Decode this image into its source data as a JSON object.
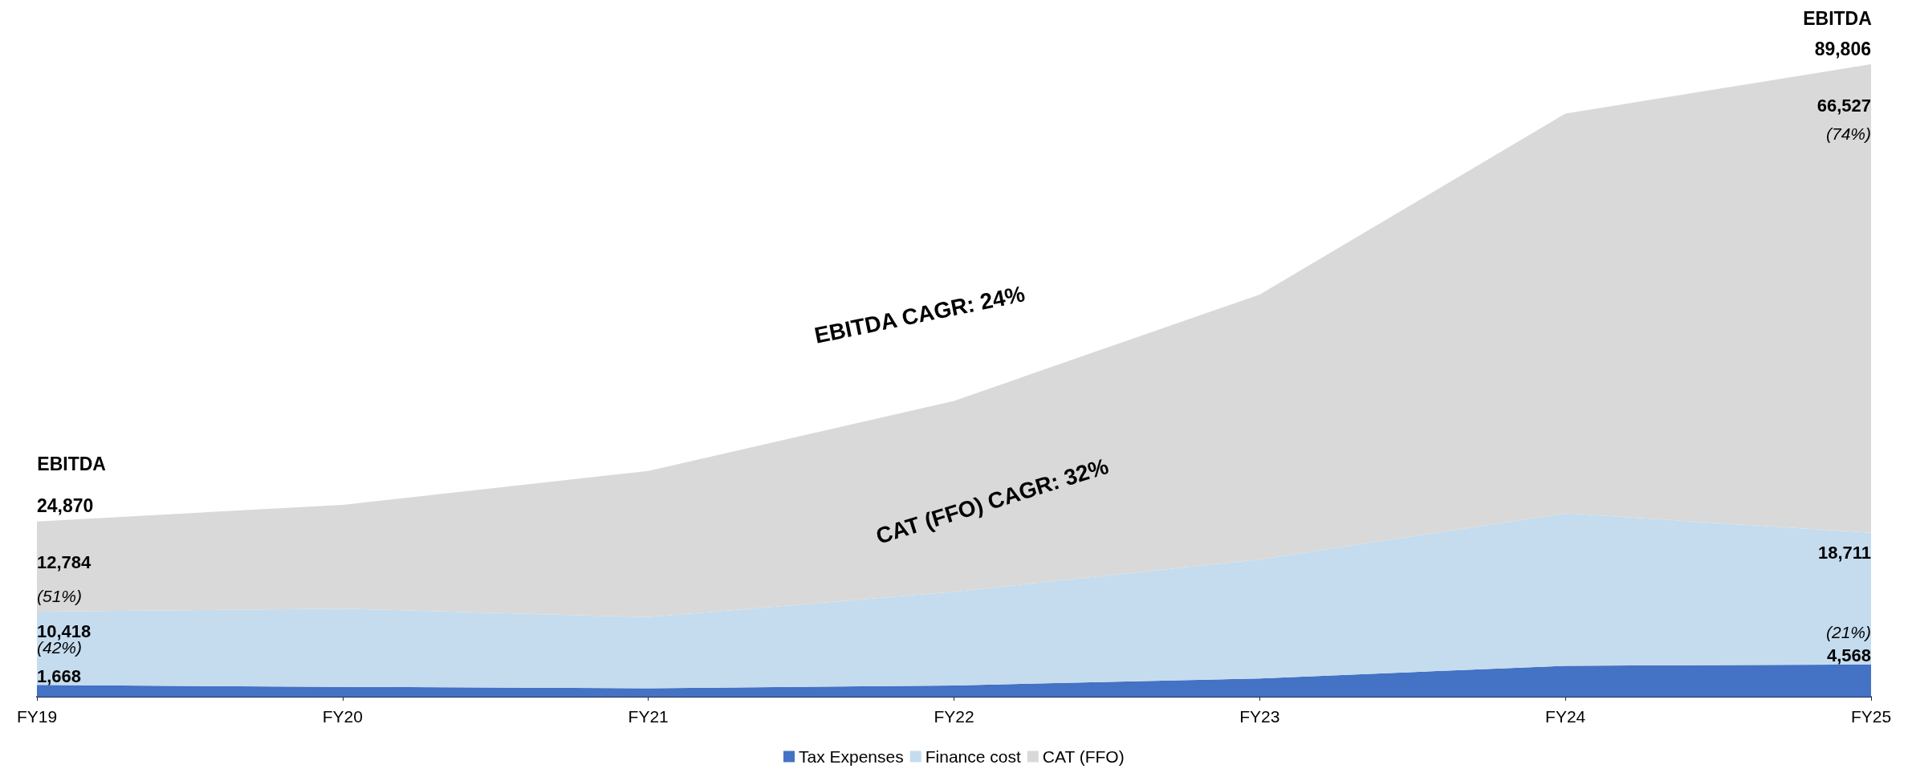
{
  "chart_data": {
    "type": "area",
    "stacked": true,
    "categories": [
      "FY19",
      "FY20",
      "FY21",
      "FY22",
      "FY23",
      "FY24",
      "FY25"
    ],
    "series": [
      {
        "name": "Tax Expenses",
        "color": "#4472c4",
        "values": [
          1668,
          1400,
          1200,
          1600,
          2600,
          4400,
          4568
        ],
        "value_labels": [
          "1,668",
          null,
          null,
          null,
          null,
          null,
          "4,568"
        ]
      },
      {
        "name": "Finance cost",
        "color": "#c5dcee",
        "values": [
          10418,
          11100,
          10100,
          13300,
          16900,
          21650,
          18711
        ],
        "value_labels": [
          "10,418",
          null,
          null,
          null,
          null,
          null,
          "18,711"
        ]
      },
      {
        "name": "CAT (FFO)",
        "color": "#d9d9d9",
        "values": [
          12784,
          14750,
          20750,
          27100,
          37600,
          56750,
          66527
        ],
        "value_labels": [
          "12,784",
          null,
          null,
          null,
          null,
          null,
          "66,527"
        ]
      }
    ],
    "totals": [
      "24,870",
      null,
      null,
      null,
      null,
      null,
      "89,806"
    ],
    "annotations": [
      "EBITDA",
      "EBITDA",
      {
        "text": "(51%)",
        "x": "FY19",
        "y": 14300
      },
      {
        "text": "(42%)",
        "x": "FY19",
        "y": 7000
      },
      {
        "text": "(74%)",
        "x": "FY25",
        "y": 80000
      },
      {
        "text": "(21%)",
        "x": "FY25",
        "y": 9200
      },
      "EBITDA CAGR: 24%",
      "CAT (FFO) CAGR: 32%"
    ],
    "legend": "bottom",
    "grid": false,
    "marker": "none"
  }
}
